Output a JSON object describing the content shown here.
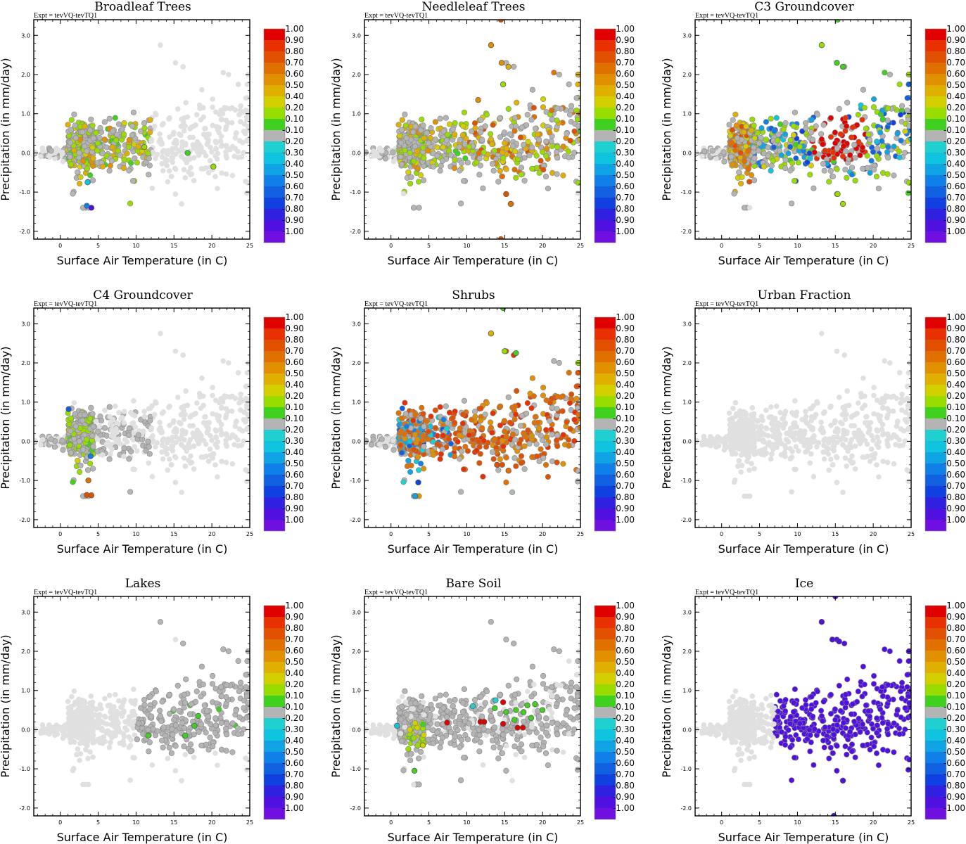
{
  "figure": {
    "xlabel": "Surface Air Temperature (in C)",
    "ylabel": "Precipitation (in mm/day)",
    "expt": "Expt = tevVQ-tevTQ1",
    "xlim": [
      -3.5,
      25
    ],
    "ylim": [
      -2.2,
      3.4
    ],
    "x_ticks": [
      "0",
      "5",
      "10",
      "15",
      "20",
      "25"
    ],
    "y_ticks": [
      "-2.0",
      "-1.0",
      "0.0",
      "1.0",
      "2.0",
      "3.0"
    ],
    "colorbar_labels": [
      "1.00",
      "0.90",
      "0.80",
      "0.70",
      "0.60",
      "0.50",
      "0.40",
      "0.20",
      "0.10",
      "-0.10",
      "-0.20",
      "-0.30",
      "-0.40",
      "-0.50",
      "-0.60",
      "-0.70",
      "-0.80",
      "-0.90",
      "-1.00"
    ],
    "colorbar_colors": [
      "#e00000",
      "#e83000",
      "#e05000",
      "#e07000",
      "#e09000",
      "#e0b000",
      "#d4d000",
      "#98dc00",
      "#40d020",
      "#b4b4b4",
      "#20d0d0",
      "#10c4e0",
      "#10a4e4",
      "#1080e8",
      "#1060e0",
      "#1040e0",
      "#3020e0",
      "#5010e0",
      "#7010e0"
    ],
    "background_color": "#e0e0e0",
    "neutral_color": "#b4b4b4"
  },
  "chart_data": [
    {
      "type": "scatter",
      "title": "Broadleaf Trees",
      "highlight_region": [
        1,
        12,
        -1.5,
        1.0
      ],
      "highlight_fraction": 0.55,
      "colored_points": [
        {
          "x": 4.1,
          "y": -1.4,
          "c": -0.9
        },
        {
          "x": 3.5,
          "y": -1.35,
          "c": -0.5
        },
        {
          "x": 3.6,
          "y": -0.75,
          "c": -0.3
        },
        {
          "x": 20.2,
          "y": -0.35,
          "c": 0.2
        },
        {
          "x": 16.8,
          "y": 0.0,
          "c": 0.1
        },
        {
          "x": 11.1,
          "y": 0.15,
          "c": 0.3
        }
      ]
    },
    {
      "type": "scatter",
      "title": "Needleleaf Trees",
      "highlight_region": [
        1,
        25,
        -1.0,
        2.8
      ],
      "highlight_fraction": 0.5,
      "colored_points": [
        {
          "x": 14.5,
          "y": 3.4,
          "c": 0.8
        },
        {
          "x": 13.2,
          "y": 2.75,
          "c": 0.6
        },
        {
          "x": 14.6,
          "y": 2.3,
          "c": 0.6
        },
        {
          "x": 15.5,
          "y": 2.2,
          "c": 0.5
        },
        {
          "x": 14.8,
          "y": 1.75,
          "c": 0.2
        },
        {
          "x": 24.7,
          "y": 2.0,
          "c": 0.5
        },
        {
          "x": 15.2,
          "y": -1.05,
          "c": 0.8
        },
        {
          "x": 15.8,
          "y": -1.3,
          "c": 0.7
        },
        {
          "x": 14.5,
          "y": -2.2,
          "c": 0.8
        },
        {
          "x": 11.5,
          "y": 1.35,
          "c": 0.6
        },
        {
          "x": 25.0,
          "y": 0.55,
          "c": 0.1
        }
      ]
    },
    {
      "type": "scatter",
      "title": "C3 Groundcover",
      "highlight_region": [
        1,
        25,
        -1.3,
        2.8
      ],
      "highlight_fraction": 0.7,
      "colored_points": [
        {
          "x": 15.3,
          "y": 3.4,
          "c": 0.1
        },
        {
          "x": 13.2,
          "y": 2.75,
          "c": 0.2
        },
        {
          "x": 15.2,
          "y": 2.3,
          "c": 0.1
        },
        {
          "x": 16.0,
          "y": 2.2,
          "c": 0.1
        },
        {
          "x": 24.7,
          "y": 2.0,
          "c": 0.2
        },
        {
          "x": 16.0,
          "y": -1.3,
          "c": 0.2
        },
        {
          "x": 15.3,
          "y": -1.05,
          "c": 0.3
        }
      ]
    },
    {
      "type": "scatter",
      "title": "C4 Groundcover",
      "highlight_region": [
        1,
        4.5,
        -1.4,
        0.9
      ],
      "highlight_fraction": 0.35,
      "colored_points": [
        {
          "x": 1.1,
          "y": 0.82,
          "c": -0.6
        },
        {
          "x": 3.7,
          "y": -1.0,
          "c": 0.7
        },
        {
          "x": 3.5,
          "y": -1.37,
          "c": 0.8
        },
        {
          "x": 4.1,
          "y": -1.38,
          "c": 0.8
        },
        {
          "x": 4.0,
          "y": -0.38,
          "c": -0.5
        }
      ]
    },
    {
      "type": "scatter",
      "title": "Shrubs",
      "highlight_region": [
        1,
        25,
        -1.4,
        2.8
      ],
      "highlight_fraction": 0.8,
      "colored_points": [
        {
          "x": 14.8,
          "y": 3.4,
          "c": 0.1
        },
        {
          "x": 13.2,
          "y": 2.75,
          "c": 0.5
        },
        {
          "x": 15.0,
          "y": 2.3,
          "c": 0.2
        },
        {
          "x": 16.5,
          "y": 2.25,
          "c": 0.1
        },
        {
          "x": 24.7,
          "y": 2.0,
          "c": 0.3
        },
        {
          "x": 3.6,
          "y": -1.05,
          "c": -0.7
        },
        {
          "x": 3.2,
          "y": -1.4,
          "c": -0.4
        },
        {
          "x": 15.5,
          "y": -0.75,
          "c": 0.7
        },
        {
          "x": 14.0,
          "y": -0.6,
          "c": 0.8
        }
      ]
    },
    {
      "type": "scatter",
      "title": "Urban Fraction",
      "highlight_region": [
        0,
        0,
        0,
        0
      ],
      "highlight_fraction": 0,
      "colored_points": []
    },
    {
      "type": "scatter",
      "title": "Lakes",
      "highlight_region": [
        10,
        25,
        -0.6,
        2.0
      ],
      "highlight_fraction": 0.02,
      "colored_points": [
        {
          "x": 11.6,
          "y": -0.15,
          "c": 0.1
        },
        {
          "x": 16.5,
          "y": -0.15,
          "c": 0.1
        },
        {
          "x": 17.7,
          "y": 0.1,
          "c": 0.1
        },
        {
          "x": 18.2,
          "y": 0.35,
          "c": 0.1
        }
      ]
    },
    {
      "type": "scatter",
      "title": "Bare Soil",
      "highlight_region": [
        2,
        4.5,
        -0.5,
        0.2
      ],
      "highlight_fraction": 0.6,
      "colored_points": [
        {
          "x": 3.1,
          "y": -1.05,
          "c": 0.1
        },
        {
          "x": 4.2,
          "y": -0.4,
          "c": 0.4
        },
        {
          "x": 0.8,
          "y": 0.1,
          "c": -0.3
        },
        {
          "x": 7.4,
          "y": 0.18,
          "c": 1.0
        },
        {
          "x": 11.8,
          "y": 0.2,
          "c": 1.0
        },
        {
          "x": 12.3,
          "y": 0.2,
          "c": 1.0
        },
        {
          "x": 14.8,
          "y": 0.7,
          "c": 1.0
        },
        {
          "x": 14.8,
          "y": 0.15,
          "c": 1.0
        },
        {
          "x": 16.7,
          "y": 0.05,
          "c": 1.0
        },
        {
          "x": 17.4,
          "y": 0.05,
          "c": 1.0
        },
        {
          "x": 15.2,
          "y": 0.45,
          "c": 0.1
        },
        {
          "x": 16.5,
          "y": 0.5,
          "c": 0.1
        },
        {
          "x": 17.5,
          "y": 0.45,
          "c": 0.1
        },
        {
          "x": 18.0,
          "y": 0.62,
          "c": 0.1
        },
        {
          "x": 19.0,
          "y": 0.65,
          "c": 0.1
        },
        {
          "x": 20.0,
          "y": 0.5,
          "c": 0.1
        },
        {
          "x": 16.3,
          "y": 0.25,
          "c": 0.1
        },
        {
          "x": 18.5,
          "y": 0.3,
          "c": 0.1
        },
        {
          "x": 13.7,
          "y": 0.55,
          "c": 0.1
        },
        {
          "x": 10.8,
          "y": 0.6,
          "c": -0.2
        },
        {
          "x": 13.8,
          "y": 0.75,
          "c": -0.2
        }
      ]
    },
    {
      "type": "scatter",
      "title": "Ice",
      "highlight_region": [
        7,
        25,
        -1.3,
        2.8
      ],
      "highlight_fraction": 1.0,
      "highlight_value": -0.9,
      "colored_points": [
        {
          "x": 15.0,
          "y": 3.4,
          "c": -0.9
        },
        {
          "x": 13.2,
          "y": 2.75,
          "c": -0.9
        },
        {
          "x": 14.6,
          "y": 2.3,
          "c": -0.9
        },
        {
          "x": 15.5,
          "y": 2.25,
          "c": -0.9
        },
        {
          "x": 24.7,
          "y": 2.0,
          "c": -0.9
        },
        {
          "x": 16.0,
          "y": -1.3,
          "c": -0.9
        },
        {
          "x": 14.8,
          "y": -2.2,
          "c": -0.9
        }
      ]
    }
  ]
}
